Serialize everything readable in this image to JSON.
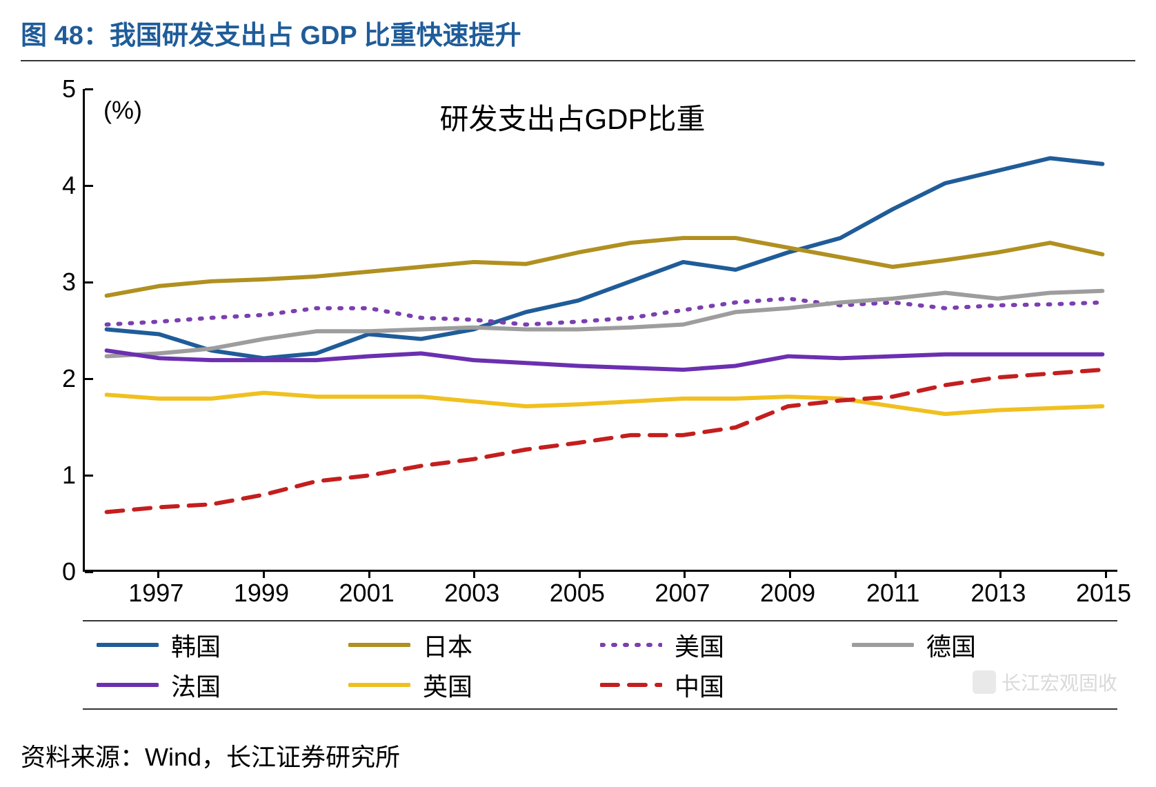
{
  "figure_title": "图 48：我国研发支出占 GDP 比重快速提升",
  "source_text": "资料来源：Wind，长江证券研究所",
  "watermark_text": "长江宏观固收",
  "chart": {
    "type": "line",
    "title": "研发支出占GDP比重",
    "unit_label": "(%)",
    "title_fontsize": 42,
    "label_fontsize": 36,
    "background_color": "#ffffff",
    "axis_color": "#000000",
    "ylim": [
      0,
      5
    ],
    "yticks": [
      0,
      1,
      2,
      3,
      4,
      5
    ],
    "x_years": [
      1996,
      1997,
      1998,
      1999,
      2000,
      2001,
      2002,
      2003,
      2004,
      2005,
      2006,
      2007,
      2008,
      2009,
      2010,
      2011,
      2012,
      2013,
      2014,
      2015
    ],
    "x_tick_labels": [
      "1997",
      "1999",
      "2001",
      "2003",
      "2005",
      "2007",
      "2009",
      "2011",
      "2013",
      "2015"
    ],
    "x_tick_years": [
      1997,
      1999,
      2001,
      2003,
      2005,
      2007,
      2009,
      2011,
      2013,
      2015
    ],
    "line_width": 6,
    "legend_border_color": "#333333",
    "series": [
      {
        "name": "韩国",
        "color": "#1f5c99",
        "style": "solid",
        "data": [
          2.5,
          2.45,
          2.28,
          2.2,
          2.25,
          2.45,
          2.4,
          2.5,
          2.68,
          2.8,
          3.0,
          3.2,
          3.12,
          3.3,
          3.45,
          3.75,
          4.02,
          4.15,
          4.28,
          4.22
        ]
      },
      {
        "name": "日本",
        "color": "#b09020",
        "style": "solid",
        "data": [
          2.85,
          2.95,
          3.0,
          3.02,
          3.05,
          3.1,
          3.15,
          3.2,
          3.18,
          3.3,
          3.4,
          3.45,
          3.45,
          3.35,
          3.25,
          3.15,
          3.22,
          3.3,
          3.4,
          3.28
        ]
      },
      {
        "name": "美国",
        "color": "#7b3fb0",
        "style": "dotted",
        "data": [
          2.55,
          2.58,
          2.62,
          2.65,
          2.72,
          2.72,
          2.62,
          2.6,
          2.55,
          2.58,
          2.62,
          2.7,
          2.78,
          2.82,
          2.75,
          2.78,
          2.72,
          2.75,
          2.76,
          2.78
        ]
      },
      {
        "name": "德国",
        "color": "#9d9d9d",
        "style": "solid",
        "data": [
          2.22,
          2.25,
          2.3,
          2.4,
          2.48,
          2.48,
          2.5,
          2.52,
          2.5,
          2.5,
          2.52,
          2.55,
          2.68,
          2.72,
          2.78,
          2.82,
          2.88,
          2.82,
          2.88,
          2.9
        ]
      },
      {
        "name": "法国",
        "color": "#6b2fb0",
        "style": "solid",
        "data": [
          2.28,
          2.2,
          2.18,
          2.18,
          2.18,
          2.22,
          2.25,
          2.18,
          2.15,
          2.12,
          2.1,
          2.08,
          2.12,
          2.22,
          2.2,
          2.22,
          2.24,
          2.24,
          2.24,
          2.24
        ]
      },
      {
        "name": "英国",
        "color": "#f0c020",
        "style": "solid",
        "data": [
          1.82,
          1.78,
          1.78,
          1.84,
          1.8,
          1.8,
          1.8,
          1.75,
          1.7,
          1.72,
          1.75,
          1.78,
          1.78,
          1.8,
          1.78,
          1.7,
          1.62,
          1.66,
          1.68,
          1.7
        ]
      },
      {
        "name": "中国",
        "color": "#c41e1e",
        "style": "dashed",
        "data": [
          0.6,
          0.65,
          0.68,
          0.78,
          0.92,
          0.98,
          1.08,
          1.15,
          1.25,
          1.32,
          1.4,
          1.4,
          1.48,
          1.7,
          1.76,
          1.8,
          1.92,
          2.0,
          2.04,
          2.08
        ]
      }
    ]
  }
}
